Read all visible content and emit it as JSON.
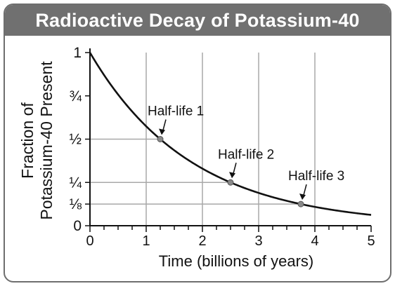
{
  "chart_data": {
    "type": "line",
    "title": "Radioactive Decay of Potassium-40",
    "xlabel": "Time (billions of years)",
    "ylabel_lines": [
      "Fraction of",
      "Potassium-40 Present"
    ],
    "xlim": [
      0,
      5
    ],
    "ylim": [
      0,
      1
    ],
    "x_ticks": [
      {
        "value": 0,
        "label": "0"
      },
      {
        "value": 1,
        "label": "1"
      },
      {
        "value": 2,
        "label": "2"
      },
      {
        "value": 3,
        "label": "3"
      },
      {
        "value": 4,
        "label": "4"
      },
      {
        "value": 5,
        "label": "5"
      }
    ],
    "x_minor_step": 0.25,
    "y_ticks": [
      {
        "value": 0,
        "label": "0"
      },
      {
        "value": 0.125,
        "label": "⅛"
      },
      {
        "value": 0.25,
        "label": "¼"
      },
      {
        "value": 0.5,
        "label": "½"
      },
      {
        "value": 0.75,
        "label": "¾"
      },
      {
        "value": 1,
        "label": "1"
      }
    ],
    "vertical_grid": [
      1,
      2,
      3,
      4
    ],
    "grid_color": "#a8a8a8",
    "curve_color": "#111111",
    "half_life": 1.25,
    "series": [
      {
        "x": [
          0,
          0.25,
          0.5,
          0.75,
          1,
          1.25,
          1.5,
          1.75,
          2,
          2.25,
          2.5,
          2.75,
          3,
          3.25,
          3.5,
          3.75,
          4,
          4.25,
          4.5,
          4.75,
          5
        ],
        "y": [
          1,
          0.871,
          0.758,
          0.66,
          0.574,
          0.5,
          0.435,
          0.379,
          0.33,
          0.287,
          0.25,
          0.218,
          0.189,
          0.165,
          0.144,
          0.125,
          0.109,
          0.095,
          0.082,
          0.072,
          0.0625
        ]
      }
    ],
    "annotations": [
      {
        "label": "Half-life 1",
        "x": 1.25,
        "y": 0.5
      },
      {
        "label": "Half-life 2",
        "x": 2.5,
        "y": 0.25
      },
      {
        "label": "Half-life 3",
        "x": 3.75,
        "y": 0.125
      }
    ]
  }
}
